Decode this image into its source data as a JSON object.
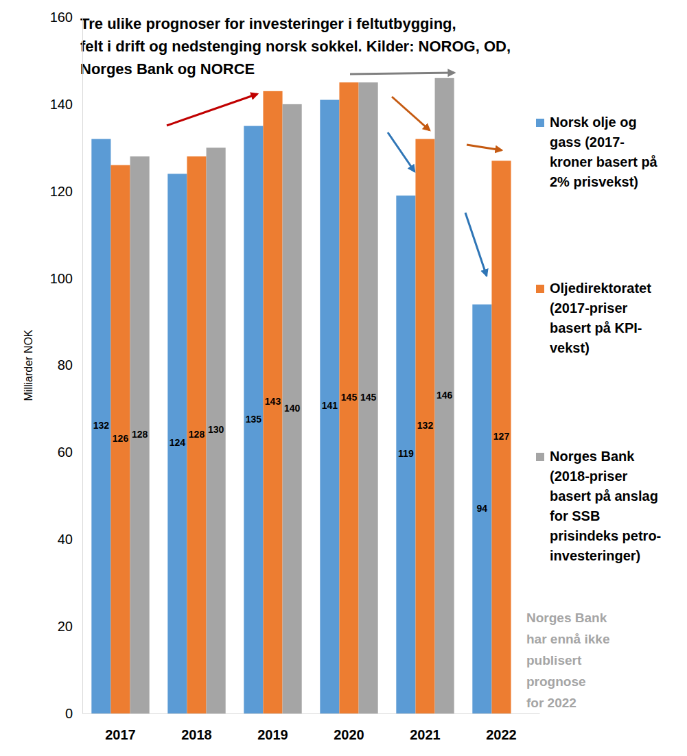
{
  "chart_data": {
    "type": "bar",
    "title": "Tre ulike prognoser for investeringer i feltutbygging,\nfelt i drift og nedstenging norsk sokkel. Kilder: NOROG, OD,\nNorges Bank og NORCE",
    "y_label": "Milliarder NOK",
    "categories": [
      "2017",
      "2018",
      "2019",
      "2020",
      "2021",
      "2022"
    ],
    "series": [
      {
        "name": "Norsk olje og\ngass (2017-\nkroner basert på\n2% prisvekst)",
        "color": "#5B9BD5",
        "values": [
          132,
          124,
          135,
          141,
          119,
          94
        ]
      },
      {
        "name": "Oljedirektoratet\n(2017-priser\nbasert på KPI-\nvekst)",
        "color": "#ED7D31",
        "values": [
          126,
          128,
          143,
          145,
          132,
          127
        ]
      },
      {
        "name": "Norges Bank\n(2018-priser\nbasert på anslag\nfor SSB\nprisindeks petro-\ninvesteringer)",
        "color": "#A5A5A5",
        "values": [
          128,
          130,
          140,
          145,
          146,
          null
        ]
      }
    ],
    "annotations": [
      "Norges Bank\nhar ennå ikke\npublisert\nprognose\nfor 2022"
    ],
    "ylim": [
      0,
      160
    ],
    "yticks": [
      0,
      20,
      40,
      60,
      80,
      100,
      120,
      140,
      160
    ],
    "grid": false,
    "legend": "right",
    "data_labels": true
  }
}
